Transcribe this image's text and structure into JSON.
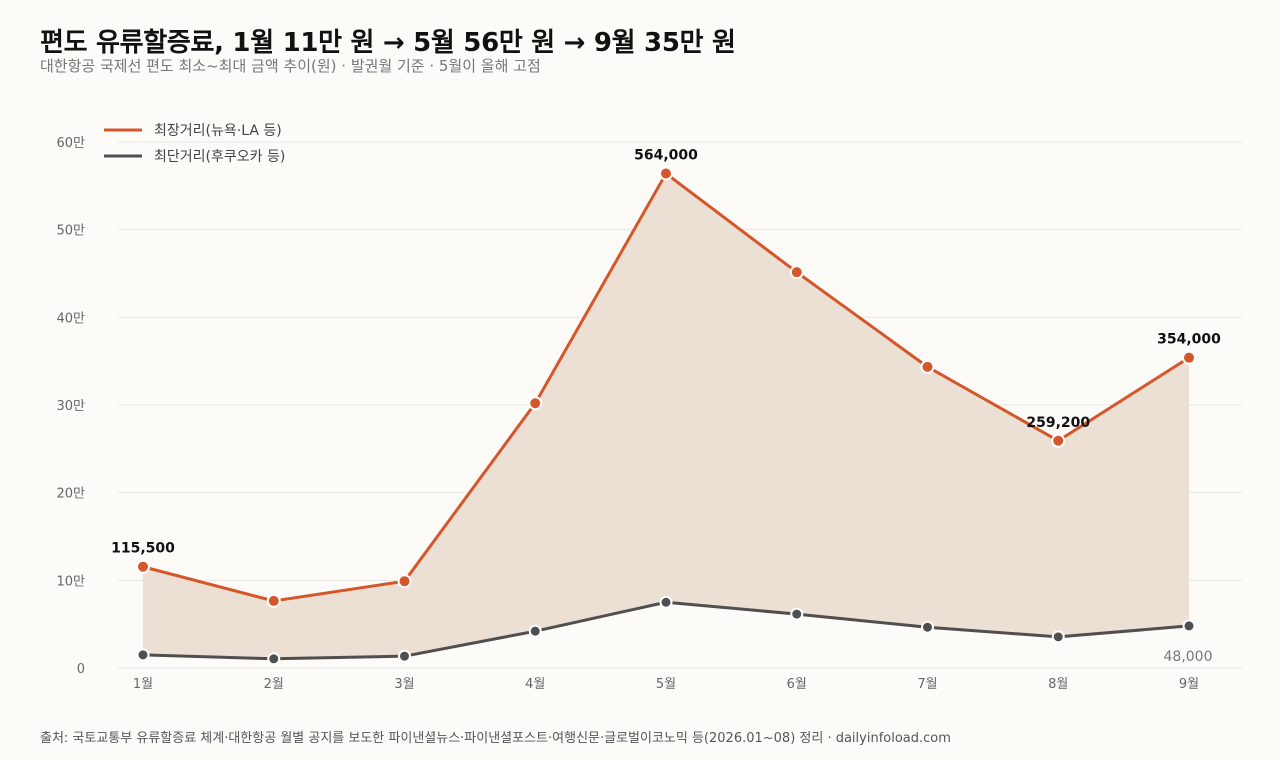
{
  "title": "편도 유류할증료, 1월 11만 원 → 5월 56만 원 → 9월 35만 원",
  "subtitle": "대한항공 국제선 편도 최소~최대 금액 추이(원) · 발권월 기준 · 5월이 올해 고점",
  "source": "출처: 국토교통부 유류할증료 체계·대한항공 월별 공지를 보도한 파이낸셜뉴스·파이낸셜포스트·여행신문·글로벌이코노믹 등(2026.01~08) 정리 · dailyinfoload.com",
  "colors": {
    "long": "#d4562a",
    "short": "#4f4f4f",
    "area": "#ebe0d3",
    "grid": "#e9e7e2"
  },
  "chart_data": {
    "type": "line",
    "categories": [
      "1월",
      "2월",
      "3월",
      "4월",
      "5월",
      "6월",
      "7월",
      "8월",
      "9월"
    ],
    "series": [
      {
        "name": "최장거리(뉴욕·LA 등)",
        "values": [
          115500,
          76500,
          99000,
          302000,
          564000,
          451500,
          343500,
          259200,
          354000
        ]
      },
      {
        "name": "최단거리(후쿠오카 등)",
        "values": [
          15000,
          10500,
          13500,
          42000,
          75000,
          61500,
          46500,
          35500,
          48000
        ]
      }
    ],
    "area_between_series": true,
    "ylim": [
      0,
      600000
    ],
    "yticks": [
      0,
      100000,
      200000,
      300000,
      400000,
      500000,
      600000
    ],
    "ytick_labels": [
      "0",
      "10만",
      "20만",
      "30만",
      "40만",
      "50만",
      "60만"
    ],
    "grid": true,
    "legend": "top-left",
    "annotations": [
      {
        "series": 0,
        "index": 0,
        "text": "115,500",
        "style": "bold"
      },
      {
        "series": 0,
        "index": 4,
        "text": "564,000",
        "style": "bold"
      },
      {
        "series": 0,
        "index": 7,
        "text": "259,200",
        "style": "bold"
      },
      {
        "series": 0,
        "index": 8,
        "text": "354,000",
        "style": "bold"
      },
      {
        "series": 1,
        "index": 8,
        "text": "48,000",
        "style": "muted"
      }
    ]
  }
}
